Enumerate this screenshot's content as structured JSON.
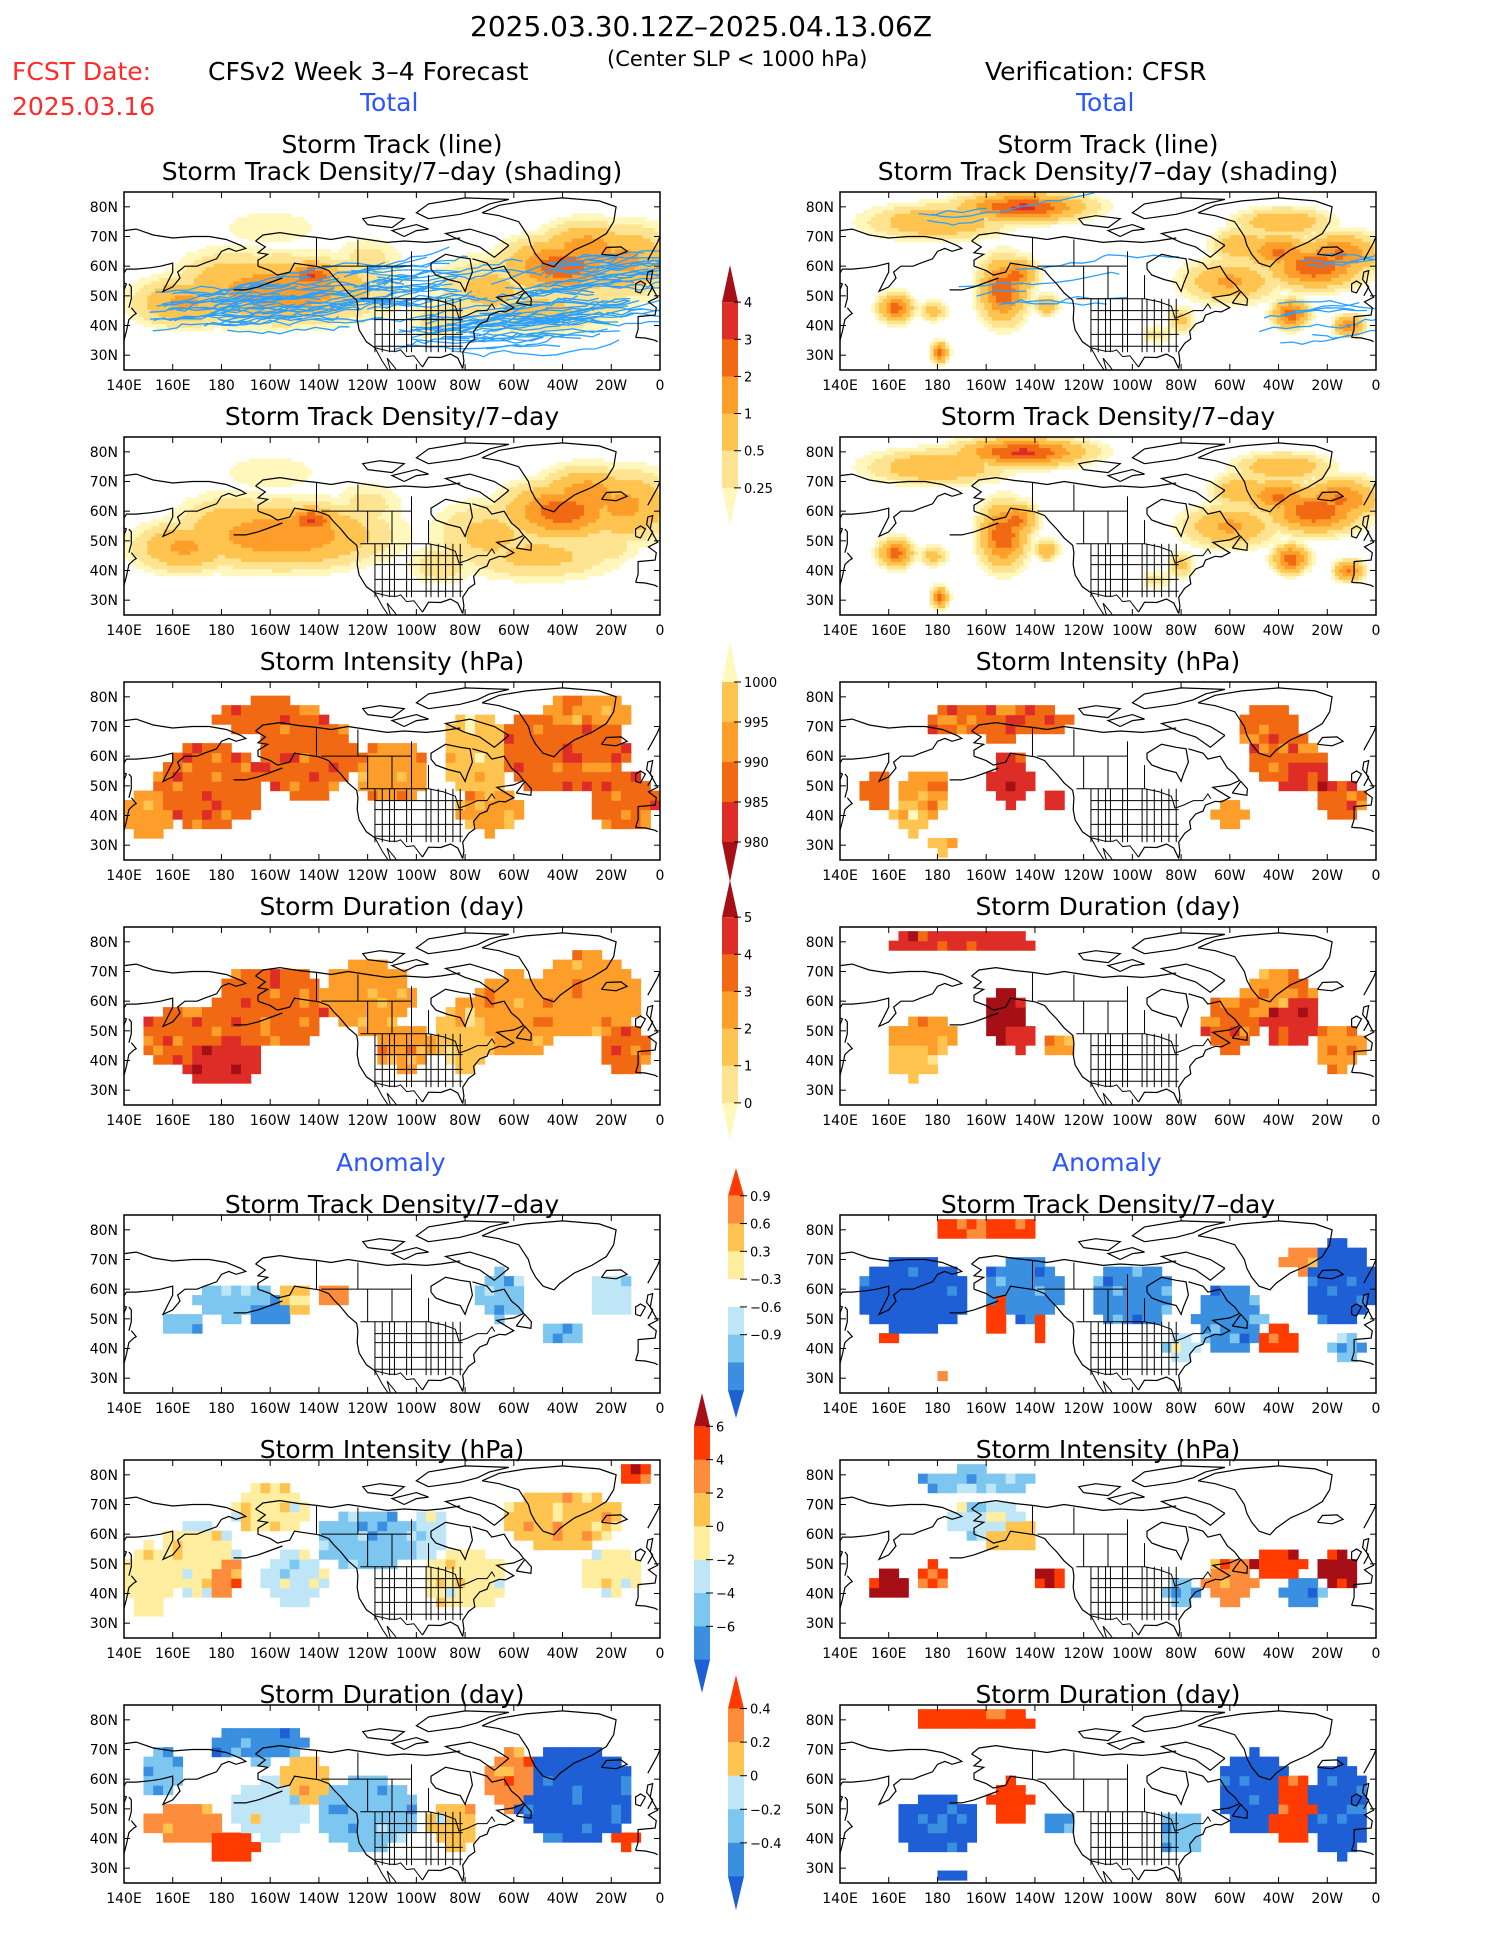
{
  "header": {
    "period": "2025.03.30.12Z–2025.04.13.06Z",
    "subtitle": "(Center SLP < 1000 hPa)",
    "fcst_label": "FCST Date:",
    "fcst_date": "2025.03.16",
    "model": "CFSv2 Week 3–4 Forecast",
    "verification": "Verification: CFSR"
  },
  "sections": {
    "total_left": "Total",
    "total_right": "Total",
    "anomaly_left": "Anomaly",
    "anomaly_right": "Anomaly"
  },
  "panel_titles": {
    "track_line": "Storm Track (line)",
    "track_shading": "Storm Track Density/7–day (shading)",
    "density": "Storm Track Density/7–day",
    "intensity": "Storm Intensity (hPa)",
    "duration": "Storm Duration (day)"
  },
  "axes": {
    "lat_labels": [
      "80N",
      "70N",
      "60N",
      "50N",
      "40N",
      "30N"
    ],
    "lon_labels": [
      "140E",
      "160E",
      "180",
      "160W",
      "140W",
      "120W",
      "100W",
      "80W",
      "60W",
      "40W",
      "20W",
      "0"
    ]
  },
  "colorbars": {
    "density": {
      "labels": [
        "4",
        "3",
        "2",
        "1",
        "0.5",
        "0.25"
      ],
      "colors": [
        "#a50f15",
        "#de2d26",
        "#f16913",
        "#fd9d2a",
        "#fec44f",
        "#fee391",
        "#fff7bc"
      ]
    },
    "intensity": {
      "labels": [
        "1000",
        "995",
        "990",
        "985",
        "980"
      ],
      "colors": [
        "#fff7bc",
        "#fec44f",
        "#fd9d2a",
        "#f16913",
        "#de2d26",
        "#a50f15"
      ]
    },
    "duration": {
      "labels": [
        "5",
        "4",
        "3",
        "2",
        "1",
        "0"
      ],
      "colors": [
        "#a50f15",
        "#de2d26",
        "#f16913",
        "#fd9d2a",
        "#fec44f",
        "#fee391",
        "#fff7bc"
      ]
    },
    "anom_density": {
      "labels": [
        "0.9",
        "0.6",
        "0.3",
        "−0.3",
        "−0.6",
        "−0.9"
      ],
      "colors": [
        "#ff3b00",
        "#fd8d3c",
        "#fec44f",
        "#ffeea0",
        "#ffffff",
        "#bfe6f6",
        "#7dc6f0",
        "#3a8fe0",
        "#1f5fd6"
      ]
    },
    "anom_intensity": {
      "labels": [
        "6",
        "4",
        "2",
        "0",
        "−2",
        "−4",
        "−6"
      ],
      "colors": [
        "#a50f15",
        "#ff3b00",
        "#fd8d3c",
        "#fec44f",
        "#ffeea0",
        "#bfe6f6",
        "#7dc6f0",
        "#3a8fe0",
        "#1f5fd6"
      ]
    },
    "anom_duration": {
      "labels": [
        "0.4",
        "0.2",
        "0",
        "−0.2",
        "−0.4"
      ],
      "colors": [
        "#ff3b00",
        "#fd8d3c",
        "#fec44f",
        "#bfe6f6",
        "#7dc6f0",
        "#3a8fe0",
        "#1f5fd6"
      ]
    }
  },
  "colors": {
    "red_text": "#ff2a2a",
    "blue_text": "#2a55ff",
    "track_line": "#2aa0ff"
  },
  "chart_data": [
    {
      "type": "heatmap",
      "panel": "forecast-total-track",
      "title": "Storm Track (line) / Storm Track Density/7–day (shading)",
      "lon_range": [
        "140E",
        "0"
      ],
      "lat_range": [
        "30N",
        "80N"
      ],
      "max_value": 4
    },
    {
      "type": "heatmap",
      "panel": "verification-total-track",
      "title": "Storm Track (line) / Storm Track Density/7–day (shading)",
      "lon_range": [
        "140E",
        "0"
      ],
      "lat_range": [
        "30N",
        "80N"
      ],
      "max_value": 4
    },
    {
      "type": "heatmap",
      "panel": "forecast-total-density",
      "title": "Storm Track Density/7–day"
    },
    {
      "type": "heatmap",
      "panel": "verification-total-density",
      "title": "Storm Track Density/7–day"
    },
    {
      "type": "heatmap",
      "panel": "forecast-total-intensity",
      "title": "Storm Intensity (hPa)",
      "range": [
        980,
        1000
      ]
    },
    {
      "type": "heatmap",
      "panel": "verification-total-intensity",
      "title": "Storm Intensity (hPa)",
      "range": [
        980,
        1000
      ]
    },
    {
      "type": "heatmap",
      "panel": "forecast-total-duration",
      "title": "Storm Duration (day)",
      "range": [
        0,
        5
      ]
    },
    {
      "type": "heatmap",
      "panel": "verification-total-duration",
      "title": "Storm Duration (day)",
      "range": [
        0,
        5
      ]
    },
    {
      "type": "heatmap",
      "panel": "forecast-anomaly-density",
      "title": "Storm Track Density/7–day",
      "range": [
        -0.9,
        0.9
      ]
    },
    {
      "type": "heatmap",
      "panel": "verification-anomaly-density",
      "title": "Storm Track Density/7–day",
      "range": [
        -0.9,
        0.9
      ]
    },
    {
      "type": "heatmap",
      "panel": "forecast-anomaly-intensity",
      "title": "Storm Intensity (hPa)",
      "range": [
        -6,
        6
      ]
    },
    {
      "type": "heatmap",
      "panel": "verification-anomaly-intensity",
      "title": "Storm Intensity (hPa)",
      "range": [
        -6,
        6
      ]
    },
    {
      "type": "heatmap",
      "panel": "forecast-anomaly-duration",
      "title": "Storm Duration (day)",
      "range": [
        -0.4,
        0.4
      ]
    },
    {
      "type": "heatmap",
      "panel": "verification-anomaly-duration",
      "title": "Storm Duration (day)",
      "range": [
        -0.4,
        0.4
      ]
    }
  ]
}
